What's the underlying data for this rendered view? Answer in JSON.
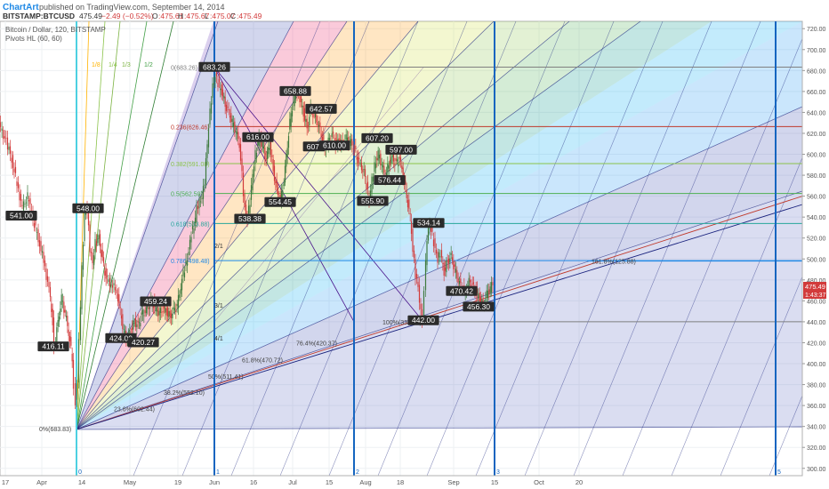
{
  "header": {
    "brand": "ChartArt",
    "published": "published on TradingView.com, September 14, 2014",
    "symbol": "BITSTAMP:BTCUSD",
    "last": "475.49",
    "change": "−2.49 (−0.52%)",
    "o_label": "O",
    "o_value": ":475.61",
    "h_label": "H",
    "h_value": ":475.67",
    "l_label": "L",
    "l_value": ":475.07",
    "c_label": "C",
    "c_value": ":475.49"
  },
  "legend": {
    "line1": "Bitcoin / Dollar, 120, BITSTAMP",
    "line2": "Pivots HL (60, 60)"
  },
  "price_tags": {
    "last": "475.49",
    "countdown": "1:43:37"
  },
  "colors": {
    "up": "#3d7a3d",
    "down": "#d23b3b",
    "fib_red": "#c0392b",
    "cycle_blue": "#1565c0",
    "cycle_cyan": "#4dd0e1",
    "gann_line": "#1a237e"
  },
  "chart_data": {
    "type": "candlestick",
    "title": "Bitcoin / Dollar, 120, BITSTAMP",
    "ylim": [
      293,
      727
    ],
    "y_ticks": [
      300,
      320,
      340,
      360,
      380,
      400,
      420,
      440,
      460,
      480,
      500,
      520,
      540,
      560,
      580,
      600,
      620,
      640,
      660,
      680,
      700,
      720
    ],
    "x_ticks": [
      "17",
      "Apr",
      "14",
      "May",
      "19",
      "Jun",
      "16",
      "Jul",
      "15",
      "Aug",
      "18",
      "Sep",
      "15",
      "Oct",
      "20"
    ],
    "price_path": [
      [
        0,
        628
      ],
      [
        8,
        612
      ],
      [
        14,
        596
      ],
      [
        20,
        572
      ],
      [
        26,
        548
      ],
      [
        32,
        560
      ],
      [
        38,
        538
      ],
      [
        44,
        520
      ],
      [
        50,
        498
      ],
      [
        56,
        470
      ],
      [
        60,
        440
      ],
      [
        62,
        416
      ],
      [
        66,
        440
      ],
      [
        70,
        462
      ],
      [
        74,
        448
      ],
      [
        78,
        430
      ],
      [
        82,
        405
      ],
      [
        84,
        380
      ],
      [
        86,
        362
      ],
      [
        88,
        378
      ],
      [
        90,
        420
      ],
      [
        93,
        490
      ],
      [
        96,
        545
      ],
      [
        99,
        548
      ],
      [
        102,
        510
      ],
      [
        105,
        495
      ],
      [
        108,
        515
      ],
      [
        112,
        520
      ],
      [
        116,
        498
      ],
      [
        120,
        482
      ],
      [
        126,
        476
      ],
      [
        132,
        470
      ],
      [
        136,
        450
      ],
      [
        140,
        430
      ],
      [
        144,
        424
      ],
      [
        148,
        432
      ],
      [
        152,
        440
      ],
      [
        156,
        436
      ],
      [
        160,
        446
      ],
      [
        164,
        450
      ],
      [
        168,
        456
      ],
      [
        172,
        459
      ],
      [
        176,
        452
      ],
      [
        180,
        448
      ],
      [
        184,
        452
      ],
      [
        188,
        450
      ],
      [
        192,
        445
      ],
      [
        196,
        450
      ],
      [
        200,
        455
      ],
      [
        204,
        474
      ],
      [
        207,
        486
      ],
      [
        210,
        495
      ],
      [
        213,
        508
      ],
      [
        216,
        525
      ],
      [
        219,
        530
      ],
      [
        222,
        548
      ],
      [
        225,
        555
      ],
      [
        228,
        560
      ],
      [
        231,
        575
      ],
      [
        234,
        610
      ],
      [
        237,
        640
      ],
      [
        240,
        665
      ],
      [
        243,
        676
      ],
      [
        246,
        668
      ],
      [
        250,
        660
      ],
      [
        254,
        648
      ],
      [
        258,
        640
      ],
      [
        262,
        630
      ],
      [
        266,
        622
      ],
      [
        270,
        610
      ],
      [
        273,
        580
      ],
      [
        276,
        548
      ],
      [
        279,
        540
      ],
      [
        282,
        555
      ],
      [
        285,
        580
      ],
      [
        288,
        600
      ],
      [
        292,
        616
      ],
      [
        296,
        608
      ],
      [
        300,
        595
      ],
      [
        304,
        610
      ],
      [
        308,
        585
      ],
      [
        312,
        565
      ],
      [
        316,
        554
      ],
      [
        320,
        575
      ],
      [
        324,
        610
      ],
      [
        328,
        640
      ],
      [
        332,
        655
      ],
      [
        335,
        660
      ],
      [
        338,
        652
      ],
      [
        342,
        640
      ],
      [
        346,
        625
      ],
      [
        350,
        642
      ],
      [
        354,
        638
      ],
      [
        358,
        630
      ],
      [
        362,
        620
      ],
      [
        366,
        605
      ],
      [
        370,
        612
      ],
      [
        374,
        618
      ],
      [
        378,
        610
      ],
      [
        382,
        612
      ],
      [
        386,
        610
      ],
      [
        390,
        615
      ],
      [
        394,
        612
      ],
      [
        398,
        608
      ],
      [
        402,
        598
      ],
      [
        406,
        590
      ],
      [
        410,
        582
      ],
      [
        413,
        570
      ],
      [
        416,
        556
      ],
      [
        419,
        575
      ],
      [
        422,
        590
      ],
      [
        426,
        600
      ],
      [
        430,
        590
      ],
      [
        434,
        578
      ],
      [
        438,
        592
      ],
      [
        442,
        597
      ],
      [
        446,
        590
      ],
      [
        450,
        596
      ],
      [
        454,
        580
      ],
      [
        458,
        560
      ],
      [
        462,
        540
      ],
      [
        465,
        510
      ],
      [
        468,
        485
      ],
      [
        471,
        472
      ],
      [
        474,
        448
      ],
      [
        476,
        442
      ],
      [
        478,
        470
      ],
      [
        481,
        520
      ],
      [
        484,
        534
      ],
      [
        487,
        522
      ],
      [
        490,
        510
      ],
      [
        493,
        500
      ],
      [
        496,
        505
      ],
      [
        500,
        488
      ],
      [
        504,
        498
      ],
      [
        508,
        502
      ],
      [
        512,
        490
      ],
      [
        516,
        480
      ],
      [
        520,
        472
      ],
      [
        524,
        470
      ],
      [
        528,
        478
      ],
      [
        532,
        474
      ],
      [
        536,
        468
      ],
      [
        540,
        462
      ],
      [
        544,
        456
      ],
      [
        548,
        466
      ],
      [
        552,
        472
      ],
      [
        555,
        476
      ]
    ],
    "pivot_labels": [
      {
        "text": "541.00",
        "x": 24,
        "y": 541
      },
      {
        "text": "416.11",
        "x": 60,
        "y": 416
      },
      {
        "text": "548.00",
        "x": 99,
        "y": 548
      },
      {
        "text": "424.00",
        "x": 136,
        "y": 424
      },
      {
        "text": "420.27",
        "x": 161,
        "y": 420
      },
      {
        "text": "459.24",
        "x": 175,
        "y": 459
      },
      {
        "text": "683.26",
        "x": 241,
        "y": 683
      },
      {
        "text": "538.38",
        "x": 281,
        "y": 538
      },
      {
        "text": "616.00",
        "x": 290,
        "y": 616
      },
      {
        "text": "554.45",
        "x": 315,
        "y": 554
      },
      {
        "text": "658.88",
        "x": 332,
        "y": 660
      },
      {
        "text": "642.57",
        "x": 361,
        "y": 643
      },
      {
        "text": "607.",
        "x": 353,
        "y": 607
      },
      {
        "text": "610.00",
        "x": 376,
        "y": 608
      },
      {
        "text": "555.90",
        "x": 419,
        "y": 555
      },
      {
        "text": "607.20",
        "x": 424,
        "y": 615
      },
      {
        "text": "597.00",
        "x": 451,
        "y": 604
      },
      {
        "text": "576.44",
        "x": 438,
        "y": 575
      },
      {
        "text": "534.14",
        "x": 482,
        "y": 534
      },
      {
        "text": "442.00",
        "x": 476,
        "y": 441
      },
      {
        "text": "470.42",
        "x": 519,
        "y": 469
      },
      {
        "text": "456.30",
        "x": 538,
        "y": 454
      }
    ],
    "fib_retracement": [
      {
        "label": "0(683.26)",
        "y": 683.26,
        "color": "#808080"
      },
      {
        "label": "0.236(626.46)",
        "y": 626.46,
        "color": "#c0392b"
      },
      {
        "label": "0.382(591.08)",
        "y": 591.08,
        "color": "#8bc34a"
      },
      {
        "label": "0.5(562.50)",
        "y": 562.5,
        "color": "#4caf50"
      },
      {
        "label": "0.618(533.88)",
        "y": 533.88,
        "color": "#26a69a"
      },
      {
        "label": "0.786(498.48)",
        "y": 498.48,
        "color": "#1e88e5"
      }
    ],
    "fib_ext": [
      {
        "label": "100%(338.90)",
        "x": 430,
        "y": 440
      },
      {
        "label": "161.8%(125.88)",
        "x": 665,
        "y": 498
      },
      {
        "label": "76.4%(420.37)",
        "x": 333,
        "y": 420
      },
      {
        "label": "61.8%(470.72)",
        "x": 272,
        "y": 404
      },
      {
        "label": "50%(511.41)",
        "x": 234,
        "y": 388
      },
      {
        "label": "38.2%(552.10)",
        "x": 184,
        "y": 373
      },
      {
        "label": "23.6%(602.44)",
        "x": 128,
        "y": 357
      },
      {
        "label": "0%(683.83)",
        "x": 44,
        "y": 338
      }
    ],
    "gann_fan_labels": [
      "1/8",
      "1/4",
      "1/3",
      "1/2",
      "2/1",
      "3/1",
      "4/1"
    ],
    "cycle_labels": [
      "0",
      "1",
      "2",
      "3",
      "5"
    ],
    "last_price": 475.49
  }
}
